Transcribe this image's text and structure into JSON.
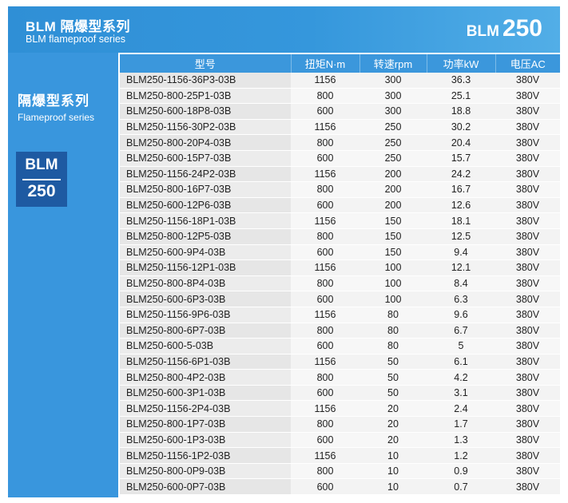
{
  "header": {
    "title_cn": "BLM 隔爆型系列",
    "title_en": "BLM flameproof series",
    "model_prefix": "BLM",
    "model_number": "250"
  },
  "side": {
    "title_cn": "隔爆型系列",
    "title_en": "Flameproof series",
    "badge_top": "BLM",
    "badge_bottom": "250"
  },
  "table": {
    "headers": [
      "型号",
      "扭矩N·m",
      "转速rpm",
      "功率kW",
      "电压AC"
    ],
    "rows": [
      [
        "BLM250-1156-36P3-03B",
        "1156",
        "300",
        "36.3",
        "380V"
      ],
      [
        "BLM250-800-25P1-03B",
        "800",
        "300",
        "25.1",
        "380V"
      ],
      [
        "BLM250-600-18P8-03B",
        "600",
        "300",
        "18.8",
        "380V"
      ],
      [
        "BLM250-1156-30P2-03B",
        "1156",
        "250",
        "30.2",
        "380V"
      ],
      [
        "BLM250-800-20P4-03B",
        "800",
        "250",
        "20.4",
        "380V"
      ],
      [
        "BLM250-600-15P7-03B",
        "600",
        "250",
        "15.7",
        "380V"
      ],
      [
        "BLM250-1156-24P2-03B",
        "1156",
        "200",
        "24.2",
        "380V"
      ],
      [
        "BLM250-800-16P7-03B",
        "800",
        "200",
        "16.7",
        "380V"
      ],
      [
        "BLM250-600-12P6-03B",
        "600",
        "200",
        "12.6",
        "380V"
      ],
      [
        "BLM250-1156-18P1-03B",
        "1156",
        "150",
        "18.1",
        "380V"
      ],
      [
        "BLM250-800-12P5-03B",
        "800",
        "150",
        "12.5",
        "380V"
      ],
      [
        "BLM250-600-9P4-03B",
        "600",
        "150",
        "9.4",
        "380V"
      ],
      [
        "BLM250-1156-12P1-03B",
        "1156",
        "100",
        "12.1",
        "380V"
      ],
      [
        "BLM250-800-8P4-03B",
        "800",
        "100",
        "8.4",
        "380V"
      ],
      [
        "BLM250-600-6P3-03B",
        "600",
        "100",
        "6.3",
        "380V"
      ],
      [
        "BLM250-1156-9P6-03B",
        "1156",
        "80",
        "9.6",
        "380V"
      ],
      [
        "BLM250-800-6P7-03B",
        "800",
        "80",
        "6.7",
        "380V"
      ],
      [
        "BLM250-600-5-03B",
        "600",
        "80",
        "5",
        "380V"
      ],
      [
        "BLM250-1156-6P1-03B",
        "1156",
        "50",
        "6.1",
        "380V"
      ],
      [
        "BLM250-800-4P2-03B",
        "800",
        "50",
        "4.2",
        "380V"
      ],
      [
        "BLM250-600-3P1-03B",
        "600",
        "50",
        "3.1",
        "380V"
      ],
      [
        "BLM250-1156-2P4-03B",
        "1156",
        "20",
        "2.4",
        "380V"
      ],
      [
        "BLM250-800-1P7-03B",
        "800",
        "20",
        "1.7",
        "380V"
      ],
      [
        "BLM250-600-1P3-03B",
        "600",
        "20",
        "1.3",
        "380V"
      ],
      [
        "BLM250-1156-1P2-03B",
        "1156",
        "10",
        "1.2",
        "380V"
      ],
      [
        "BLM250-800-0P9-03B",
        "800",
        "10",
        "0.9",
        "380V"
      ],
      [
        "BLM250-600-0P7-03B",
        "600",
        "10",
        "0.7",
        "380V"
      ]
    ]
  }
}
